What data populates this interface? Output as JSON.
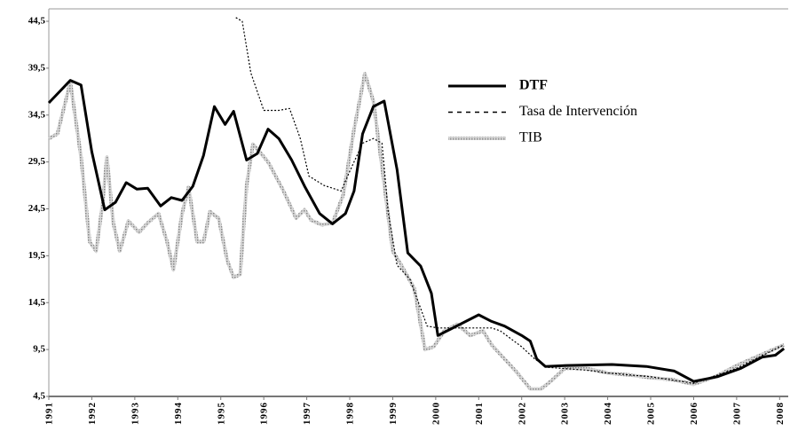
{
  "chart_data": {
    "type": "line",
    "xlim": [
      1991,
      2008.2
    ],
    "xticks": [
      1991,
      1992,
      1993,
      1994,
      1995,
      1996,
      1997,
      1998,
      1999,
      2000,
      2001,
      2002,
      2003,
      2004,
      2005,
      2006,
      2007,
      2008
    ],
    "ylim": [
      4.5,
      44.5
    ],
    "yticks": [
      {
        "value": 4.5,
        "label": "4,5"
      },
      {
        "value": 9.5,
        "label": "9,5"
      },
      {
        "value": 14.5,
        "label": "14,5"
      },
      {
        "value": 19.5,
        "label": "19,5"
      },
      {
        "value": 24.5,
        "label": "24,5"
      },
      {
        "value": 29.5,
        "label": "29,5"
      },
      {
        "value": 34.5,
        "label": "34,5"
      },
      {
        "value": 39.5,
        "label": "39,5"
      },
      {
        "value": 44.5,
        "label": "44,5"
      }
    ],
    "grid": false,
    "legend": "upper-right",
    "series": [
      {
        "name": "DTF",
        "color": "#000000",
        "style": "solid",
        "x": [
          1991.0,
          1991.5,
          1991.75,
          1992.0,
          1992.3,
          1992.55,
          1992.8,
          1993.05,
          1993.3,
          1993.6,
          1993.85,
          1994.1,
          1994.35,
          1994.6,
          1994.85,
          1995.1,
          1995.3,
          1995.6,
          1995.85,
          1996.1,
          1996.35,
          1996.65,
          1996.95,
          1997.3,
          1997.6,
          1997.9,
          1998.1,
          1998.3,
          1998.55,
          1998.8,
          1999.1,
          1999.35,
          1999.65,
          1999.9,
          2000.05,
          2000.4,
          2000.7,
          2001.0,
          2001.3,
          2001.6,
          2002.0,
          2002.2,
          2002.35,
          2002.55,
          2003.05,
          2004.1,
          2004.9,
          2005.55,
          2006.0,
          2006.55,
          2007.1,
          2007.6,
          2007.9,
          2008.1
        ],
        "values": [
          35.8,
          38.2,
          37.7,
          30.6,
          24.4,
          25.2,
          27.3,
          26.6,
          26.7,
          24.8,
          25.7,
          25.4,
          26.9,
          30.2,
          35.4,
          33.5,
          34.9,
          29.7,
          30.4,
          33.0,
          32.0,
          29.7,
          26.9,
          24.0,
          22.9,
          24.0,
          26.4,
          32.5,
          35.4,
          36.0,
          28.7,
          19.8,
          18.4,
          15.5,
          11.0,
          11.8,
          12.5,
          13.2,
          12.5,
          12.0,
          11.0,
          10.4,
          8.5,
          7.7,
          7.8,
          7.9,
          7.7,
          7.2,
          6.1,
          6.6,
          7.5,
          8.7,
          8.9,
          9.6
        ]
      },
      {
        "name": "Tasa de Intervención",
        "color": "#000000",
        "style": "dotted",
        "x": [
          1995.35,
          1995.5,
          1995.7,
          1996.0,
          1996.35,
          1996.6,
          1996.85,
          1997.05,
          1997.4,
          1997.8,
          1998.0,
          1998.3,
          1998.55,
          1998.75,
          1998.9,
          1999.1,
          1999.4,
          1999.8,
          2000.05,
          2000.6,
          2001.3,
          2001.5,
          2002.0,
          2002.3,
          2002.6,
          2003.5,
          2004.0,
          2005.0,
          2006.0,
          2007.0,
          2008.1
        ],
        "values": [
          44.9,
          44.5,
          39.0,
          35.0,
          35.0,
          35.2,
          32.0,
          28.0,
          27.0,
          26.4,
          28.5,
          31.5,
          32.0,
          31.5,
          24.0,
          18.5,
          17.0,
          12.0,
          11.8,
          11.8,
          11.8,
          11.5,
          9.8,
          8.5,
          7.6,
          7.3,
          7.0,
          6.6,
          5.9,
          7.5,
          10.0
        ]
      },
      {
        "name": "TIB",
        "color": "#b4b4b4",
        "style": "hatched",
        "x": [
          1991.0,
          1991.2,
          1991.5,
          1991.75,
          1991.95,
          1992.1,
          1992.25,
          1992.35,
          1992.5,
          1992.65,
          1992.85,
          1993.1,
          1993.3,
          1993.55,
          1993.75,
          1993.9,
          1994.1,
          1994.25,
          1994.45,
          1994.6,
          1994.75,
          1994.95,
          1995.15,
          1995.3,
          1995.45,
          1995.6,
          1995.75,
          1996.1,
          1996.45,
          1996.75,
          1996.95,
          1997.1,
          1997.35,
          1997.6,
          1997.85,
          1998.1,
          1998.35,
          1998.55,
          1998.75,
          1999.0,
          1999.2,
          1999.5,
          1999.75,
          1999.95,
          2000.2,
          2000.5,
          2000.8,
          2001.1,
          2001.3,
          2001.6,
          2001.9,
          2002.2,
          2002.45,
          2002.7,
          2003.0,
          2003.5,
          2004.0,
          2004.5,
          2005.0,
          2005.5,
          2006.0,
          2006.5,
          2007.0,
          2007.5,
          2008.1
        ],
        "values": [
          32.0,
          32.5,
          38.0,
          30.0,
          21.0,
          20.0,
          25.0,
          30.0,
          23.0,
          20.0,
          23.2,
          22.0,
          23.0,
          24.0,
          21.0,
          18.0,
          24.0,
          26.8,
          21.0,
          21.0,
          24.2,
          23.5,
          19.0,
          17.2,
          17.5,
          27.0,
          31.4,
          29.5,
          26.5,
          23.5,
          24.4,
          23.3,
          22.8,
          23.0,
          26.0,
          33.0,
          38.9,
          36.0,
          29.0,
          20.0,
          18.5,
          16.0,
          9.5,
          9.8,
          11.5,
          12.2,
          11.0,
          11.5,
          10.0,
          8.5,
          7.0,
          5.3,
          5.3,
          6.2,
          7.5,
          7.5,
          7.0,
          6.8,
          6.5,
          6.3,
          5.8,
          6.6,
          7.8,
          8.8,
          10.0
        ]
      }
    ]
  }
}
